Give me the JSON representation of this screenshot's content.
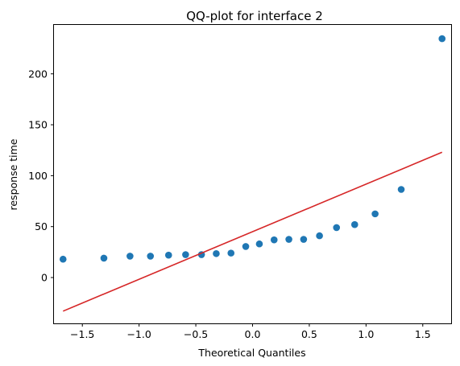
{
  "chart_data": {
    "type": "scatter",
    "title": "QQ-plot for interface 2",
    "xlabel": "Theoretical Quantiles",
    "ylabel": "response time",
    "xlim": [
      -1.75,
      1.75
    ],
    "ylim": [
      -45,
      248
    ],
    "xticks": [
      -1.5,
      -1.0,
      -0.5,
      0.0,
      0.5,
      1.0,
      1.5
    ],
    "xtick_labels": [
      "−1.5",
      "−1.0",
      "−0.5",
      "0.0",
      "0.5",
      "1.0",
      "1.5"
    ],
    "yticks": [
      0,
      50,
      100,
      150,
      200
    ],
    "ytick_labels": [
      "0",
      "50",
      "100",
      "150",
      "200"
    ],
    "grid": false,
    "series": [
      {
        "kind": "points",
        "color": "#1f77b4",
        "x": [
          -1.67,
          -1.31,
          -1.08,
          -0.9,
          -0.74,
          -0.59,
          -0.45,
          -0.32,
          -0.19,
          -0.06,
          0.06,
          0.19,
          0.32,
          0.45,
          0.59,
          0.74,
          0.9,
          1.08,
          1.31,
          1.67
        ],
        "y": [
          18,
          19,
          21,
          21,
          22,
          22.5,
          22.5,
          23.5,
          24,
          30.5,
          33,
          37,
          37.5,
          37.5,
          41,
          49,
          52,
          62.5,
          86.5,
          234.5
        ]
      },
      {
        "kind": "reference-line",
        "color": "#d62728",
        "x": [
          -1.67,
          1.67
        ],
        "y": [
          -33,
          123
        ]
      }
    ]
  }
}
